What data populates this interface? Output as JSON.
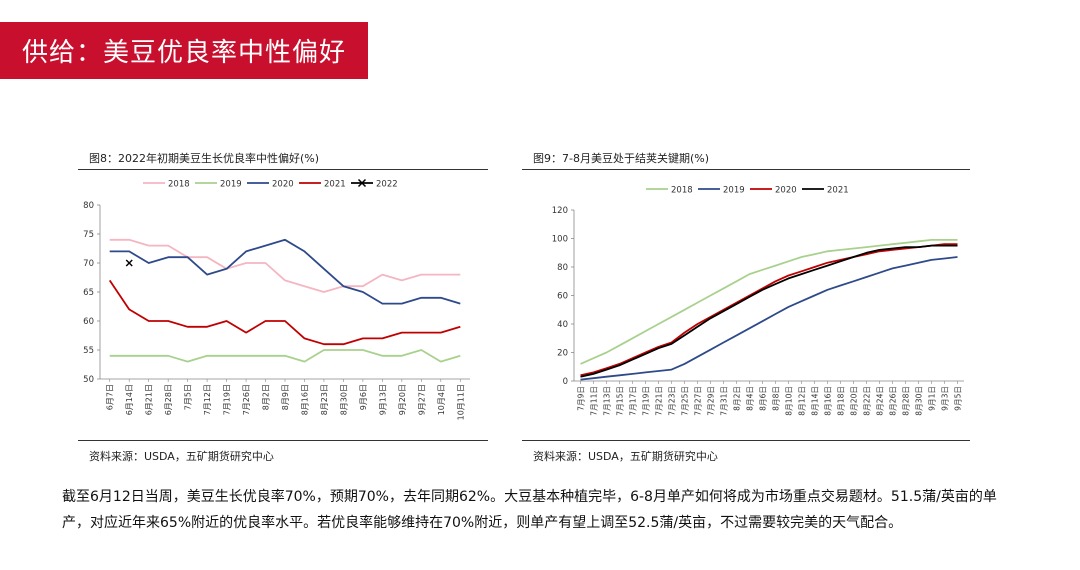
{
  "header": {
    "title": "供给：美豆优良率中性偏好"
  },
  "chart_data": [
    {
      "type": "line",
      "title": "图8：2022年初期美豆生长优良率中性偏好(%)",
      "source": "资料来源：USDA，五矿期货研究中心",
      "categories": [
        "6月7日",
        "6月14日",
        "6月21日",
        "6月28日",
        "7月5日",
        "7月12日",
        "7月19日",
        "7月26日",
        "8月2日",
        "8月9日",
        "8月16日",
        "8月23日",
        "8月30日",
        "9月6日",
        "9月13日",
        "9月20日",
        "9月27日",
        "10月4日",
        "10月11日"
      ],
      "ylim": [
        50,
        80
      ],
      "yticks": [
        50,
        55,
        60,
        65,
        70,
        75,
        80
      ],
      "legend_position": "top",
      "series": [
        {
          "name": "2018",
          "color": "#f4b6c2",
          "values": [
            74,
            74,
            73,
            73,
            71,
            71,
            69,
            70,
            70,
            67,
            66,
            65,
            66,
            66,
            68,
            67,
            68,
            68,
            68
          ]
        },
        {
          "name": "2019",
          "color": "#a9d18e",
          "values": [
            54,
            54,
            54,
            54,
            53,
            54,
            54,
            54,
            54,
            54,
            53,
            55,
            55,
            55,
            54,
            54,
            55,
            53,
            54
          ]
        },
        {
          "name": "2020",
          "color": "#2e4a8a",
          "values": [
            72,
            72,
            70,
            71,
            71,
            68,
            69,
            72,
            73,
            74,
            72,
            69,
            66,
            65,
            63,
            63,
            64,
            64,
            63
          ]
        },
        {
          "name": "2021",
          "color": "#c00000",
          "values": [
            67,
            62,
            60,
            60,
            59,
            59,
            60,
            58,
            60,
            60,
            57,
            56,
            56,
            57,
            57,
            58,
            58,
            58,
            59
          ]
        },
        {
          "name": "2022",
          "color": "#000000",
          "marker": "x",
          "values": [
            null,
            70,
            null,
            null,
            null,
            null,
            null,
            null,
            null,
            null,
            null,
            null,
            null,
            null,
            null,
            null,
            null,
            null,
            null
          ]
        }
      ]
    },
    {
      "type": "line",
      "title": "图9：7-8月美豆处于结荚关键期(%)",
      "source": "资料来源：USDA，五矿期货研究中心",
      "categories": [
        "7月9日",
        "7月11日",
        "7月13日",
        "7月15日",
        "7月17日",
        "7月19日",
        "7月21日",
        "7月23日",
        "7月25日",
        "7月27日",
        "7月29日",
        "7月31日",
        "8月2日",
        "8月4日",
        "8月6日",
        "8月8日",
        "8月10日",
        "8月12日",
        "8月14日",
        "8月16日",
        "8月18日",
        "8月20日",
        "8月22日",
        "8月24日",
        "8月26日",
        "8月28日",
        "8月30日",
        "9月1日",
        "9月3日",
        "9月5日"
      ],
      "ylim": [
        0,
        120
      ],
      "yticks": [
        0,
        20,
        40,
        60,
        80,
        100,
        120
      ],
      "legend_position": "top",
      "series": [
        {
          "name": "2018",
          "color": "#a9d18e",
          "values": [
            12,
            16,
            20,
            25,
            30,
            35,
            40,
            45,
            50,
            55,
            60,
            65,
            70,
            75,
            78,
            81,
            84,
            87,
            89,
            91,
            92,
            93,
            94,
            95,
            96,
            97,
            98,
            99,
            99,
            99
          ]
        },
        {
          "name": "2019",
          "color": "#2e4a8a",
          "values": [
            1,
            2,
            3,
            4,
            5,
            6,
            7,
            8,
            12,
            17,
            22,
            27,
            32,
            37,
            42,
            47,
            52,
            56,
            60,
            64,
            67,
            70,
            73,
            76,
            79,
            81,
            83,
            85,
            86,
            87
          ]
        },
        {
          "name": "2020",
          "color": "#c00000",
          "values": [
            4,
            6,
            9,
            12,
            16,
            20,
            24,
            27,
            34,
            40,
            45,
            50,
            55,
            60,
            65,
            70,
            74,
            77,
            80,
            83,
            85,
            87,
            89,
            91,
            92,
            93,
            94,
            95,
            96,
            96
          ]
        },
        {
          "name": "2021",
          "color": "#000000",
          "values": [
            3,
            5,
            8,
            11,
            15,
            19,
            23,
            26,
            32,
            38,
            44,
            49,
            54,
            59,
            64,
            68,
            72,
            75,
            78,
            81,
            84,
            87,
            90,
            92,
            93,
            94,
            94,
            95,
            95,
            95
          ]
        }
      ]
    }
  ],
  "body": {
    "paragraph": "截至6月12日当周，美豆生长优良率70%，预期70%，去年同期62%。大豆基本种植完毕，6-8月单产如何将成为市场重点交易题材。51.5蒲/英亩的单产，对应近年来65%附近的优良率水平。若优良率能够维持在70%附近，则单产有望上调至52.5蒲/英亩，不过需要较完美的天气配合。"
  }
}
